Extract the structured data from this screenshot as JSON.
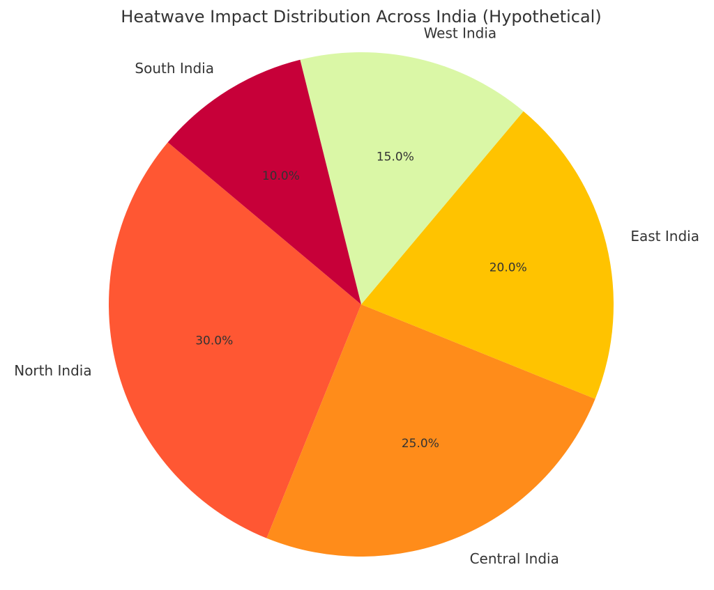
{
  "chart_data": {
    "type": "pie",
    "title": "Heatwave Impact Distribution Across India (Hypothetical)",
    "labels": [
      "North India",
      "Central India",
      "East India",
      "West India",
      "South India"
    ],
    "values": [
      30,
      25,
      20,
      15,
      10
    ],
    "percent_labels": [
      "30.0%",
      "25.0%",
      "20.0%",
      "15.0%",
      "10.0%"
    ],
    "colors": [
      "#ff5733",
      "#ff8c1a",
      "#ffc300",
      "#daf7a6",
      "#c70039"
    ],
    "start_angle_deg": 140,
    "direction": "counterclockwise",
    "legend": "none"
  }
}
